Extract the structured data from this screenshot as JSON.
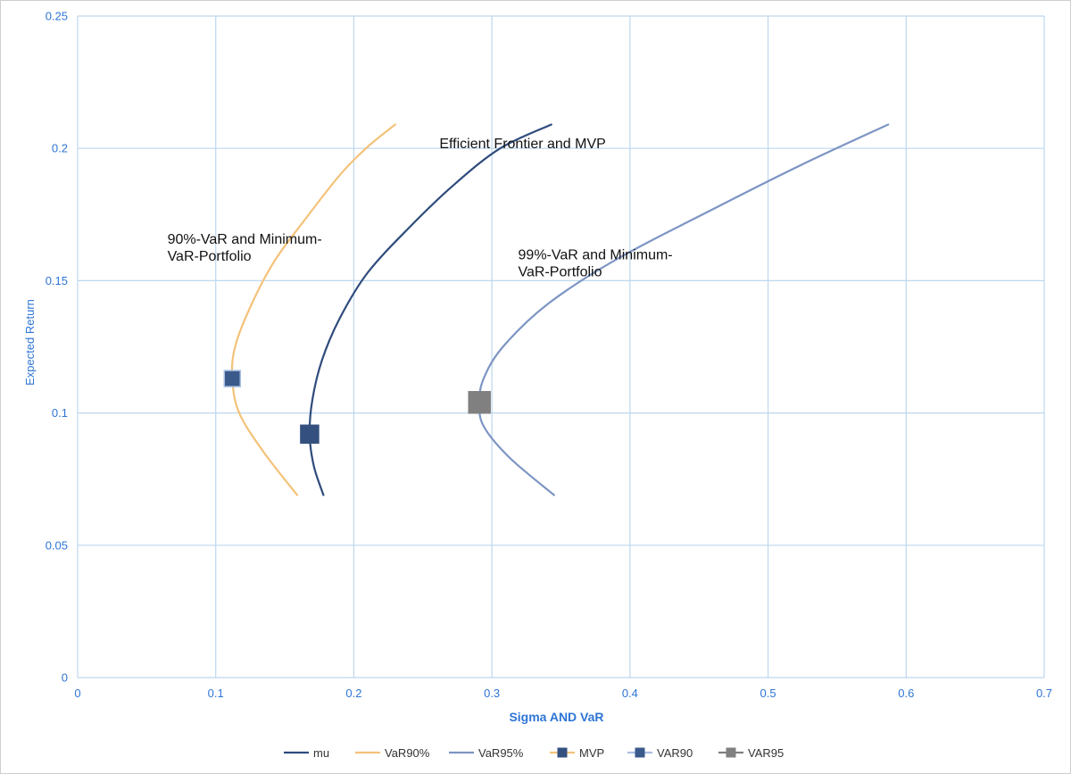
{
  "chart_data": {
    "type": "scatter",
    "xlabel": "Sigma AND VaR",
    "ylabel": "Expected Return",
    "xlim": [
      0,
      0.7
    ],
    "ylim": [
      0,
      0.25
    ],
    "xticks": [
      "0",
      "0.1",
      "0.2",
      "0.3",
      "0.4",
      "0.5",
      "0.6",
      "0.7"
    ],
    "yticks": [
      "0",
      "0.05",
      "0.1",
      "0.15",
      "0.2",
      "0.25"
    ],
    "grid": true,
    "legend_position": "bottom",
    "colors": {
      "mu": "#2f4b7c",
      "var90": "#f4c27a",
      "var95": "#7d95c4",
      "mvp": "#34507f",
      "var90_marker": "#3a5a8c",
      "var95_marker": "#808080",
      "grid": "#bdd7ee",
      "tick_text": "#2e75d6",
      "axis_title": "#2e75d6"
    },
    "series": [
      {
        "name": "mu",
        "type": "line",
        "points": [
          [
            0.178,
            0.069
          ],
          [
            0.171,
            0.08
          ],
          [
            0.168,
            0.092
          ],
          [
            0.17,
            0.105
          ],
          [
            0.177,
            0.12
          ],
          [
            0.19,
            0.136
          ],
          [
            0.21,
            0.153
          ],
          [
            0.24,
            0.17
          ],
          [
            0.272,
            0.186
          ],
          [
            0.306,
            0.2
          ],
          [
            0.343,
            0.209
          ]
        ]
      },
      {
        "name": "VaR90%",
        "type": "line",
        "points": [
          [
            0.159,
            0.069
          ],
          [
            0.135,
            0.085
          ],
          [
            0.117,
            0.1
          ],
          [
            0.112,
            0.113
          ],
          [
            0.114,
            0.125
          ],
          [
            0.125,
            0.14
          ],
          [
            0.142,
            0.157
          ],
          [
            0.163,
            0.172
          ],
          [
            0.19,
            0.19
          ],
          [
            0.211,
            0.201
          ],
          [
            0.23,
            0.209
          ]
        ]
      },
      {
        "name": "VaR95%",
        "type": "line",
        "points": [
          [
            0.345,
            0.069
          ],
          [
            0.313,
            0.083
          ],
          [
            0.294,
            0.095
          ],
          [
            0.291,
            0.104
          ],
          [
            0.294,
            0.113
          ],
          [
            0.308,
            0.125
          ],
          [
            0.34,
            0.141
          ],
          [
            0.39,
            0.158
          ],
          [
            0.46,
            0.177
          ],
          [
            0.525,
            0.194
          ],
          [
            0.587,
            0.209
          ]
        ]
      },
      {
        "name": "MVP",
        "type": "marker",
        "points": [
          [
            0.168,
            0.092
          ]
        ]
      },
      {
        "name": "VAR90",
        "type": "marker",
        "points": [
          [
            0.112,
            0.113
          ]
        ]
      },
      {
        "name": "VAR95",
        "type": "marker",
        "points": [
          [
            0.291,
            0.104
          ]
        ]
      }
    ],
    "annotations": [
      {
        "lines": [
          "Efficient Frontier and MVP"
        ],
        "x": 0.262,
        "y": 0.2
      },
      {
        "lines": [
          "90%-VaR and Minimum-",
          "VaR-Portfolio"
        ],
        "x": 0.065,
        "y": 0.164
      },
      {
        "lines": [
          "99%-VaR and Minimum-",
          "VaR-Portfolio"
        ],
        "x": 0.319,
        "y": 0.158
      }
    ],
    "legend": [
      "mu",
      "VaR90%",
      "VaR95%",
      "MVP",
      "VAR90",
      "VAR95"
    ]
  }
}
